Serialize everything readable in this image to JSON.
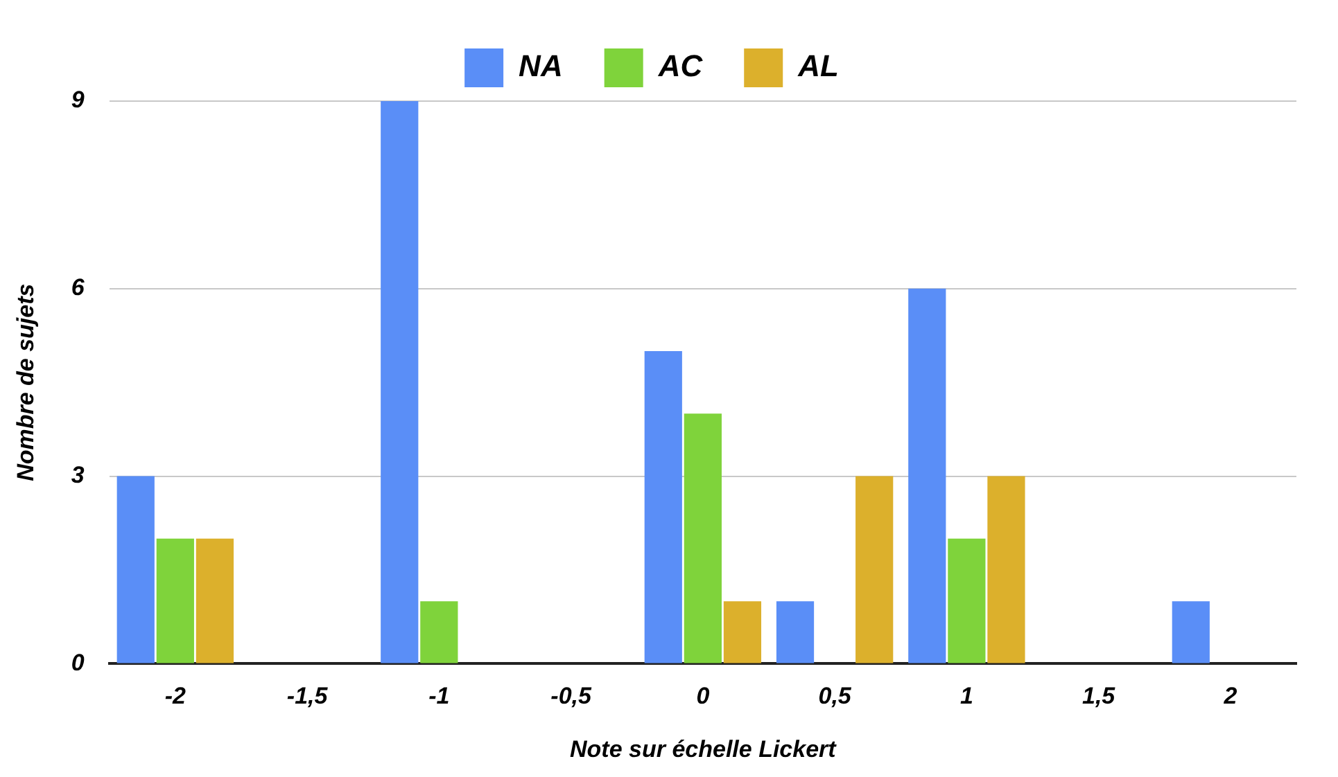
{
  "chart_data": {
    "type": "bar",
    "xlabel": "Note sur échelle Lickert",
    "ylabel": "Nombre de sujets",
    "categories": [
      "-2",
      "-1,5",
      "-1",
      "-0,5",
      "0",
      "0,5",
      "1",
      "1,5",
      "2"
    ],
    "series": [
      {
        "name": "NA",
        "color": "#5a8ef7",
        "values": [
          3,
          0,
          9,
          0,
          5,
          1,
          6,
          0,
          1
        ]
      },
      {
        "name": "AC",
        "color": "#7fd33b",
        "values": [
          2,
          0,
          1,
          0,
          4,
          0,
          2,
          0,
          0
        ]
      },
      {
        "name": "AL",
        "color": "#dcb02c",
        "values": [
          2,
          0,
          0,
          0,
          1,
          3,
          3,
          0,
          0
        ]
      }
    ],
    "ylim": [
      0,
      9
    ],
    "yticks": [
      0,
      3,
      6,
      9
    ],
    "grid": "y",
    "legend": "top"
  }
}
